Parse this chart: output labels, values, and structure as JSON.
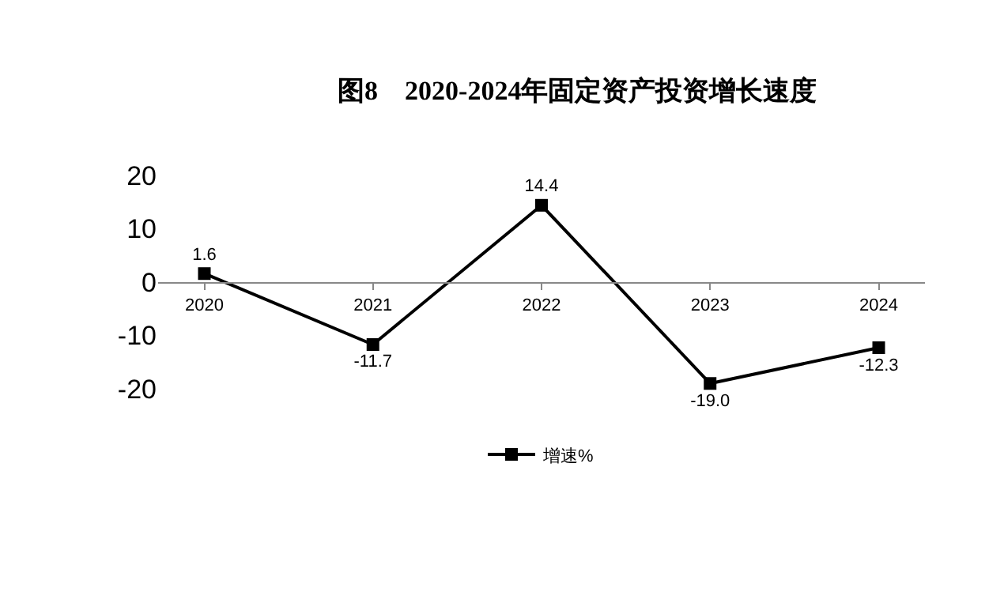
{
  "chart_data": {
    "type": "line",
    "title": "图8　2020-2024年固定资产投资增长速度",
    "categories": [
      "2020",
      "2021",
      "2022",
      "2023",
      "2024"
    ],
    "series": [
      {
        "name": "增速%",
        "color": "#000000",
        "values": [
          1.6,
          -11.7,
          14.4,
          -19.0,
          -12.3
        ],
        "value_labels": [
          "1.6",
          "-11.7",
          "14.4",
          "-19.0",
          "-12.3"
        ]
      }
    ],
    "ylim": [
      -20,
      20
    ],
    "yticks": [
      -20,
      -10,
      0,
      10,
      20
    ],
    "grid": false,
    "legend": "bottom",
    "marker": "square",
    "line_style": "solid"
  }
}
